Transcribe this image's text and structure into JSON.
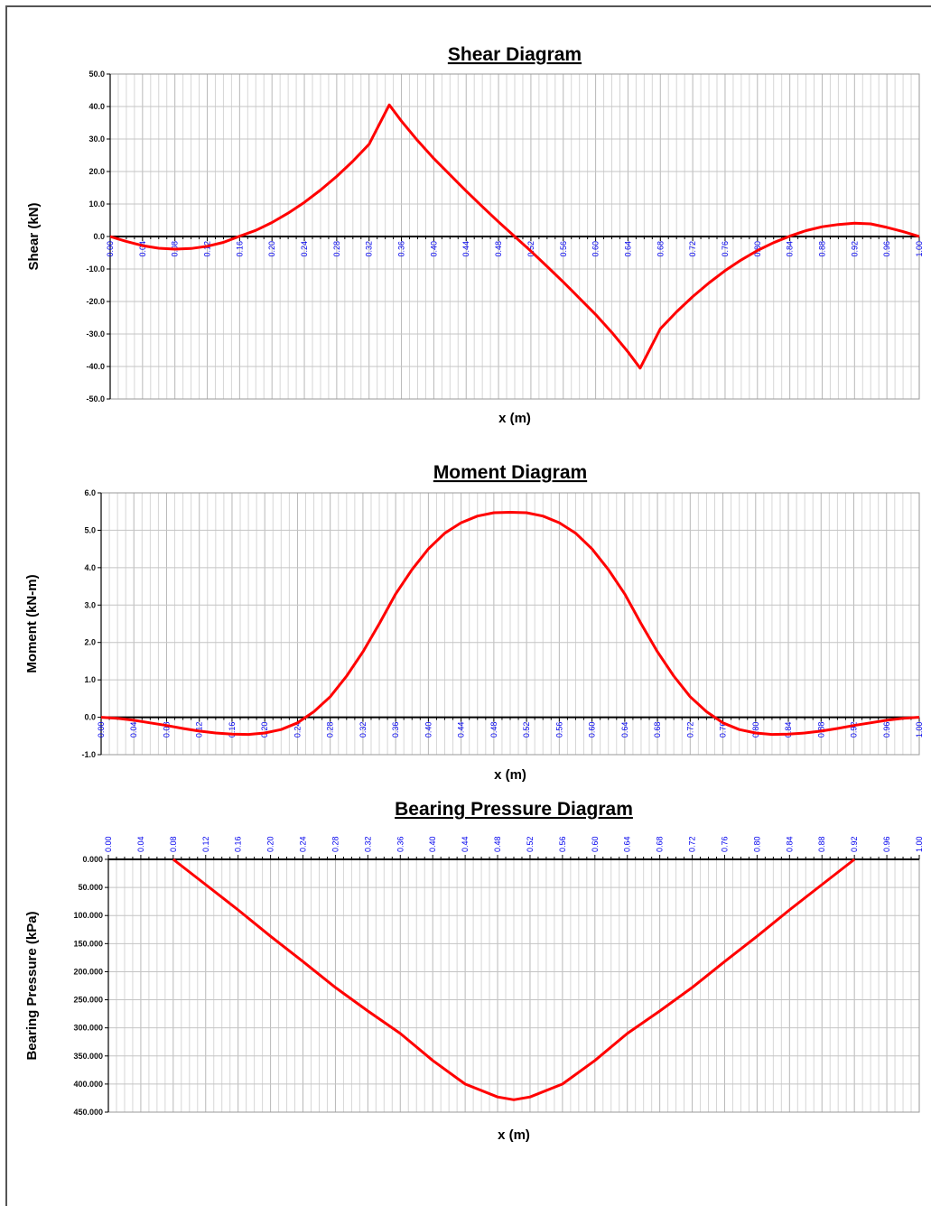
{
  "chart_data": [
    {
      "type": "line",
      "title": "Shear Diagram",
      "xlabel": "x (m)",
      "ylabel": "Shear (kN)",
      "xlim": [
        0,
        1
      ],
      "ylim": [
        -50,
        50
      ],
      "y_ticks": [
        "50.0",
        "40.0",
        "30.0",
        "20.0",
        "10.0",
        "0.0",
        "-10.0",
        "-20.0",
        "-30.0",
        "-40.0",
        "-50.0"
      ],
      "x_ticks": [
        "0.00",
        "0.04",
        "0.08",
        "0.12",
        "0.16",
        "0.20",
        "0.24",
        "0.28",
        "0.32",
        "0.36",
        "0.40",
        "0.44",
        "0.48",
        "0.52",
        "0.56",
        "0.60",
        "0.64",
        "0.68",
        "0.72",
        "0.76",
        "0.80",
        "0.84",
        "0.88",
        "0.92",
        "0.96",
        "1.00"
      ],
      "grid": true,
      "series": [
        {
          "color": "#ff0000",
          "x": [
            0.0,
            0.02,
            0.04,
            0.06,
            0.08,
            0.1,
            0.12,
            0.14,
            0.16,
            0.18,
            0.2,
            0.22,
            0.24,
            0.26,
            0.28,
            0.3,
            0.32,
            0.345,
            0.36,
            0.38,
            0.4,
            0.42,
            0.44,
            0.46,
            0.48,
            0.5,
            0.52,
            0.54,
            0.56,
            0.58,
            0.6,
            0.62,
            0.64,
            0.655,
            0.68,
            0.7,
            0.72,
            0.74,
            0.76,
            0.78,
            0.8,
            0.82,
            0.84,
            0.86,
            0.88,
            0.9,
            0.92,
            0.94,
            0.96,
            0.98,
            1.0
          ],
          "y": [
            0,
            -1.5,
            -2.8,
            -3.6,
            -3.9,
            -3.7,
            -3.0,
            -1.8,
            0.1,
            1.9,
            4.3,
            7.2,
            10.5,
            14.3,
            18.5,
            23.2,
            28.4,
            40.5,
            35.5,
            29.5,
            24.0,
            19.0,
            14.0,
            9.2,
            4.5,
            0,
            -4.5,
            -9.2,
            -14.0,
            -19.0,
            -24.0,
            -29.5,
            -35.5,
            -40.5,
            -28.4,
            -23.2,
            -18.5,
            -14.3,
            -10.5,
            -7.2,
            -4.3,
            -1.9,
            0.1,
            1.8,
            3.0,
            3.7,
            4.1,
            3.9,
            2.8,
            1.5,
            0
          ]
        }
      ]
    },
    {
      "type": "line",
      "title": "Moment Diagram",
      "xlabel": "x (m)",
      "ylabel": "Moment (kN-m)",
      "xlim": [
        0,
        1
      ],
      "ylim": [
        -1,
        6
      ],
      "y_ticks": [
        "6.0",
        "5.0",
        "4.0",
        "3.0",
        "2.0",
        "1.0",
        "0.0",
        "-1.0"
      ],
      "x_ticks": [
        "0.00",
        "0.04",
        "0.08",
        "0.12",
        "0.16",
        "0.20",
        "0.24",
        "0.28",
        "0.32",
        "0.36",
        "0.40",
        "0.44",
        "0.48",
        "0.52",
        "0.56",
        "0.60",
        "0.64",
        "0.68",
        "0.72",
        "0.76",
        "0.80",
        "0.84",
        "0.88",
        "0.92",
        "0.96",
        "1.00"
      ],
      "grid": true,
      "series": [
        {
          "color": "#ff0000",
          "x": [
            0.0,
            0.02,
            0.04,
            0.06,
            0.08,
            0.1,
            0.12,
            0.14,
            0.16,
            0.18,
            0.2,
            0.22,
            0.24,
            0.26,
            0.28,
            0.3,
            0.32,
            0.34,
            0.36,
            0.38,
            0.4,
            0.42,
            0.44,
            0.46,
            0.48,
            0.5,
            0.52,
            0.54,
            0.56,
            0.58,
            0.6,
            0.62,
            0.64,
            0.66,
            0.68,
            0.7,
            0.72,
            0.74,
            0.76,
            0.78,
            0.8,
            0.82,
            0.84,
            0.86,
            0.88,
            0.9,
            0.92,
            0.94,
            0.96,
            0.98,
            1.0
          ],
          "y": [
            0,
            -0.03,
            -0.08,
            -0.15,
            -0.22,
            -0.3,
            -0.37,
            -0.42,
            -0.45,
            -0.46,
            -0.42,
            -0.33,
            -0.15,
            0.15,
            0.55,
            1.1,
            1.75,
            2.5,
            3.3,
            3.95,
            4.5,
            4.92,
            5.2,
            5.38,
            5.47,
            5.48,
            5.47,
            5.38,
            5.2,
            4.92,
            4.5,
            3.95,
            3.3,
            2.5,
            1.75,
            1.1,
            0.55,
            0.15,
            -0.15,
            -0.33,
            -0.42,
            -0.46,
            -0.45,
            -0.42,
            -0.37,
            -0.3,
            -0.22,
            -0.15,
            -0.08,
            -0.03,
            0
          ]
        }
      ]
    },
    {
      "type": "line",
      "title": "Bearing Pressure Diagram",
      "xlabel": "x (m)",
      "ylabel": "Bearing Pressure (kPa)",
      "xlim": [
        0,
        1
      ],
      "ylim": [
        0,
        450
      ],
      "y_inverted": true,
      "y_ticks": [
        "0.000",
        "50.000",
        "100.000",
        "150.000",
        "200.000",
        "250.000",
        "300.000",
        "350.000",
        "400.000",
        "450.000"
      ],
      "x_ticks": [
        "0.00",
        "0.04",
        "0.08",
        "0.12",
        "0.16",
        "0.20",
        "0.24",
        "0.28",
        "0.32",
        "0.36",
        "0.40",
        "0.44",
        "0.48",
        "0.52",
        "0.56",
        "0.60",
        "0.64",
        "0.68",
        "0.72",
        "0.76",
        "0.80",
        "0.84",
        "0.88",
        "0.92",
        "0.96",
        "1.00"
      ],
      "x_axis_position": "top",
      "grid": true,
      "series": [
        {
          "color": "#ff0000",
          "x": [
            0.08,
            0.12,
            0.16,
            0.2,
            0.24,
            0.28,
            0.32,
            0.36,
            0.4,
            0.44,
            0.48,
            0.5,
            0.52,
            0.56,
            0.6,
            0.64,
            0.68,
            0.72,
            0.76,
            0.8,
            0.84,
            0.88,
            0.92
          ],
          "y": [
            0,
            45,
            90,
            137,
            182,
            228,
            270,
            310,
            358,
            400,
            423,
            428,
            423,
            400,
            358,
            310,
            270,
            228,
            182,
            137,
            90,
            45,
            0
          ]
        }
      ]
    }
  ]
}
